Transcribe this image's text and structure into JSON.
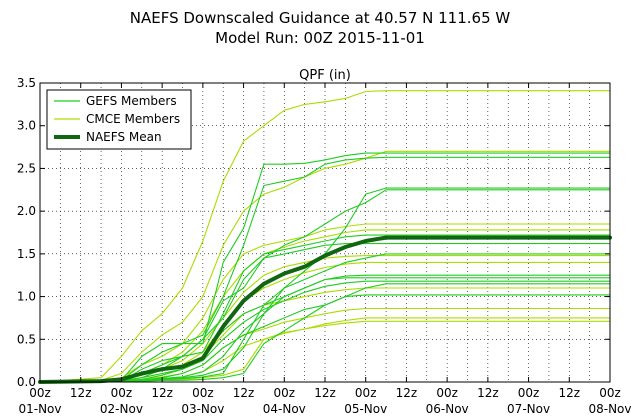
{
  "header": {
    "title_line1": "NAEFS Downscaled Guidance at 40.57 N 111.65 W",
    "title_line2": "Model Run: 00Z 2015-11-01"
  },
  "chart_data": {
    "type": "line",
    "title": "QPF (in)",
    "xlabel": "",
    "ylabel": "",
    "x_unit": "hours since 00z 01-Nov",
    "xlim": [
      0,
      168
    ],
    "ylim": [
      0,
      3.5
    ],
    "yticks": [
      "0.0",
      "0.5",
      "1.0",
      "1.5",
      "2.0",
      "2.5",
      "3.0",
      "3.5"
    ],
    "xticks_top": [
      "00z",
      "12z",
      "00z",
      "12z",
      "00z",
      "12z",
      "00z",
      "12z",
      "00z",
      "12z",
      "00z",
      "12z",
      "00z",
      "12z",
      "00z"
    ],
    "xticks_bottom": [
      "01-Nov",
      "",
      "02-Nov",
      "",
      "03-Nov",
      "",
      "04-Nov",
      "",
      "05-Nov",
      "",
      "06-Nov",
      "",
      "07-Nov",
      "",
      "08-Nov"
    ],
    "grid": "dotted, every 6 hours and every 0.5 in",
    "legend": {
      "placement": "top-left",
      "entries": [
        {
          "label": "GEFS Members",
          "color": "#22cc22"
        },
        {
          "label": "CMCE Members",
          "color": "#aadd00"
        },
        {
          "label": "NAEFS Mean",
          "color": "#116611"
        }
      ]
    },
    "series": [
      {
        "group": "GEFS Members",
        "color": "#22cc22",
        "x": [
          0,
          18,
          24,
          30,
          36,
          42,
          48,
          54,
          60,
          66,
          72,
          78,
          84,
          90,
          96,
          102,
          168
        ],
        "y": [
          0,
          0,
          0.02,
          0.3,
          0.45,
          0.45,
          0.45,
          1.4,
          1.8,
          2.55,
          2.55,
          2.56,
          2.6,
          2.65,
          2.68,
          2.68,
          2.68
        ]
      },
      {
        "group": "GEFS Members",
        "color": "#22cc22",
        "x": [
          0,
          18,
          24,
          30,
          36,
          42,
          48,
          54,
          60,
          66,
          72,
          78,
          84,
          90,
          96,
          102,
          168
        ],
        "y": [
          0,
          0,
          0.02,
          0.2,
          0.35,
          0.45,
          0.55,
          1.0,
          1.6,
          2.3,
          2.35,
          2.4,
          2.55,
          2.6,
          2.62,
          2.63,
          2.63
        ]
      },
      {
        "group": "GEFS Members",
        "color": "#22cc22",
        "x": [
          0,
          18,
          24,
          30,
          36,
          42,
          48,
          54,
          60,
          66,
          72,
          78,
          84,
          90,
          96,
          102,
          168
        ],
        "y": [
          0,
          0,
          0.02,
          0.1,
          0.2,
          0.3,
          0.5,
          0.95,
          1.1,
          1.45,
          1.6,
          1.7,
          1.85,
          2.0,
          2.1,
          2.25,
          2.25
        ]
      },
      {
        "group": "GEFS Members",
        "color": "#22cc22",
        "x": [
          0,
          18,
          24,
          30,
          36,
          42,
          48,
          54,
          60,
          66,
          72,
          78,
          84,
          90,
          96,
          102,
          168
        ],
        "y": [
          0,
          0,
          0.01,
          0.15,
          0.25,
          0.3,
          0.35,
          0.8,
          1.3,
          1.5,
          1.55,
          1.6,
          1.65,
          1.7,
          1.72,
          1.72,
          1.72
        ]
      },
      {
        "group": "GEFS Members",
        "color": "#22cc22",
        "x": [
          0,
          18,
          24,
          30,
          36,
          42,
          48,
          54,
          60,
          66,
          72,
          78,
          84,
          90,
          96,
          102,
          168
        ],
        "y": [
          0,
          0,
          0.01,
          0.05,
          0.15,
          0.3,
          0.5,
          0.75,
          1.2,
          1.45,
          1.5,
          1.55,
          1.6,
          1.62,
          1.62,
          1.62,
          1.62
        ]
      },
      {
        "group": "GEFS Members",
        "color": "#22cc22",
        "x": [
          0,
          18,
          24,
          30,
          36,
          42,
          48,
          54,
          60,
          66,
          72,
          78,
          84,
          90,
          96,
          102,
          168
        ],
        "y": [
          0,
          0,
          0.01,
          0.05,
          0.1,
          0.15,
          0.3,
          0.6,
          0.8,
          0.9,
          1.0,
          1.1,
          1.2,
          1.24,
          1.25,
          1.25,
          1.25
        ]
      },
      {
        "group": "GEFS Members",
        "color": "#22cc22",
        "x": [
          0,
          18,
          24,
          30,
          36,
          42,
          48,
          54,
          60,
          66,
          72,
          78,
          84,
          90,
          96,
          102,
          168
        ],
        "y": [
          0,
          0,
          0.01,
          0.03,
          0.08,
          0.15,
          0.25,
          0.5,
          0.7,
          0.85,
          0.95,
          1.05,
          1.12,
          1.16,
          1.18,
          1.18,
          1.18
        ]
      },
      {
        "group": "GEFS Members",
        "color": "#22cc22",
        "x": [
          0,
          18,
          24,
          30,
          36,
          42,
          48,
          54,
          60,
          66,
          72,
          78,
          84,
          90,
          96,
          102,
          168
        ],
        "y": [
          0,
          0,
          0.01,
          0.02,
          0.05,
          0.1,
          0.2,
          0.4,
          0.55,
          0.65,
          0.75,
          0.85,
          0.9,
          1.0,
          1.02,
          1.02,
          1.02
        ]
      },
      {
        "group": "GEFS Members",
        "color": "#22cc22",
        "x": [
          0,
          18,
          24,
          30,
          36,
          42,
          48,
          54,
          60,
          66,
          72,
          78,
          84,
          90,
          96,
          102,
          168
        ],
        "y": [
          0,
          0,
          0.01,
          0.02,
          0.04,
          0.06,
          0.12,
          0.3,
          0.6,
          0.8,
          1.0,
          1.1,
          1.2,
          1.22,
          1.22,
          1.22,
          1.22
        ]
      },
      {
        "group": "GEFS Members",
        "color": "#22cc22",
        "x": [
          0,
          18,
          24,
          30,
          36,
          42,
          48,
          54,
          60,
          66,
          72,
          78,
          84,
          90,
          96,
          102,
          168
        ],
        "y": [
          0,
          0,
          0.01,
          0.02,
          0.03,
          0.05,
          0.08,
          0.15,
          0.4,
          0.8,
          1.1,
          1.3,
          1.5,
          1.8,
          2.2,
          2.27,
          2.27
        ]
      },
      {
        "group": "GEFS Members",
        "color": "#22cc22",
        "x": [
          0,
          18,
          24,
          30,
          36,
          42,
          48,
          54,
          60,
          66,
          72,
          78,
          84,
          90,
          96,
          102,
          168
        ],
        "y": [
          0,
          0,
          0,
          0.02,
          0.03,
          0.04,
          0.06,
          0.1,
          0.5,
          0.9,
          1.1,
          1.2,
          1.3,
          1.4,
          1.45,
          1.5,
          1.5
        ]
      },
      {
        "group": "GEFS Members",
        "color": "#22cc22",
        "x": [
          0,
          18,
          24,
          30,
          36,
          42,
          48,
          54,
          60,
          66,
          72,
          78,
          84,
          90,
          96,
          102,
          168
        ],
        "y": [
          0,
          0,
          0,
          0.01,
          0.02,
          0.02,
          0.03,
          0.05,
          0.1,
          0.45,
          0.6,
          0.75,
          0.9,
          1.0,
          1.1,
          1.15,
          1.15
        ]
      },
      {
        "group": "CMCE Members",
        "color": "#aadd00",
        "x": [
          0,
          18,
          24,
          30,
          36,
          42,
          48,
          54,
          60,
          66,
          72,
          78,
          84,
          90,
          96,
          102,
          168
        ],
        "y": [
          0,
          0.05,
          0.3,
          0.6,
          0.8,
          1.1,
          1.65,
          2.35,
          2.82,
          3.0,
          3.18,
          3.25,
          3.28,
          3.32,
          3.4,
          3.41,
          3.41
        ]
      },
      {
        "group": "CMCE Members",
        "color": "#aadd00",
        "x": [
          0,
          18,
          24,
          30,
          36,
          42,
          48,
          54,
          60,
          66,
          72,
          78,
          84,
          90,
          96,
          102,
          168
        ],
        "y": [
          0,
          0.02,
          0.1,
          0.35,
          0.55,
          0.7,
          1.0,
          1.6,
          2.0,
          2.2,
          2.28,
          2.4,
          2.5,
          2.55,
          2.62,
          2.7,
          2.7
        ]
      },
      {
        "group": "CMCE Members",
        "color": "#aadd00",
        "x": [
          0,
          18,
          24,
          30,
          36,
          42,
          48,
          54,
          60,
          66,
          72,
          78,
          84,
          90,
          96,
          102,
          168
        ],
        "y": [
          0,
          0.01,
          0.05,
          0.2,
          0.3,
          0.45,
          0.75,
          1.2,
          1.5,
          1.6,
          1.65,
          1.7,
          1.78,
          1.82,
          1.85,
          1.85,
          1.85
        ]
      },
      {
        "group": "CMCE Members",
        "color": "#aadd00",
        "x": [
          0,
          18,
          24,
          30,
          36,
          42,
          48,
          54,
          60,
          66,
          72,
          78,
          84,
          90,
          96,
          102,
          168
        ],
        "y": [
          0,
          0.01,
          0.03,
          0.1,
          0.2,
          0.35,
          0.6,
          1.0,
          1.3,
          1.5,
          1.58,
          1.65,
          1.7,
          1.75,
          1.78,
          1.78,
          1.78
        ]
      },
      {
        "group": "CMCE Members",
        "color": "#aadd00",
        "x": [
          0,
          18,
          24,
          30,
          36,
          42,
          48,
          54,
          60,
          66,
          72,
          78,
          84,
          90,
          96,
          102,
          168
        ],
        "y": [
          0,
          0.01,
          0.03,
          0.1,
          0.15,
          0.25,
          0.45,
          0.75,
          1.05,
          1.25,
          1.35,
          1.4,
          1.45,
          1.47,
          1.48,
          1.48,
          1.48
        ]
      },
      {
        "group": "CMCE Members",
        "color": "#aadd00",
        "x": [
          0,
          18,
          24,
          30,
          36,
          42,
          48,
          54,
          60,
          66,
          72,
          78,
          84,
          90,
          96,
          102,
          168
        ],
        "y": [
          0,
          0.01,
          0.02,
          0.08,
          0.15,
          0.2,
          0.35,
          0.65,
          0.95,
          1.1,
          1.2,
          1.28,
          1.34,
          1.38,
          1.4,
          1.4,
          1.4
        ]
      },
      {
        "group": "CMCE Members",
        "color": "#aadd00",
        "x": [
          0,
          18,
          24,
          30,
          36,
          42,
          48,
          54,
          60,
          66,
          72,
          78,
          84,
          90,
          96,
          102,
          168
        ],
        "y": [
          0,
          0,
          0.02,
          0.05,
          0.1,
          0.15,
          0.3,
          0.55,
          0.8,
          0.9,
          0.95,
          1.0,
          1.05,
          1.08,
          1.1,
          1.1,
          1.1
        ]
      },
      {
        "group": "CMCE Members",
        "color": "#aadd00",
        "x": [
          0,
          18,
          24,
          30,
          36,
          42,
          48,
          54,
          60,
          66,
          72,
          78,
          84,
          90,
          96,
          102,
          168
        ],
        "y": [
          0,
          0,
          0.01,
          0.03,
          0.06,
          0.1,
          0.2,
          0.4,
          0.55,
          0.62,
          0.7,
          0.75,
          0.8,
          0.84,
          0.86,
          0.86,
          0.86
        ]
      },
      {
        "group": "CMCE Members",
        "color": "#aadd00",
        "x": [
          0,
          18,
          24,
          30,
          36,
          42,
          48,
          54,
          60,
          66,
          72,
          78,
          84,
          90,
          96,
          102,
          168
        ],
        "y": [
          0,
          0,
          0.01,
          0.02,
          0.04,
          0.06,
          0.12,
          0.25,
          0.42,
          0.5,
          0.57,
          0.62,
          0.68,
          0.72,
          0.75,
          0.75,
          0.75
        ]
      },
      {
        "group": "CMCE Members",
        "color": "#aadd00",
        "x": [
          0,
          18,
          24,
          30,
          36,
          42,
          48,
          54,
          60,
          66,
          72,
          78,
          84,
          90,
          96,
          102,
          168
        ],
        "y": [
          0,
          0,
          0,
          0.01,
          0.02,
          0.03,
          0.05,
          0.08,
          0.15,
          0.5,
          0.58,
          0.62,
          0.66,
          0.69,
          0.71,
          0.71,
          0.71
        ]
      },
      {
        "group": "NAEFS Mean",
        "color": "#116611",
        "x": [
          0,
          18,
          24,
          30,
          36,
          42,
          48,
          54,
          60,
          66,
          72,
          78,
          84,
          90,
          96,
          102,
          168
        ],
        "y": [
          0,
          0.01,
          0.03,
          0.1,
          0.15,
          0.18,
          0.28,
          0.65,
          0.95,
          1.15,
          1.27,
          1.35,
          1.48,
          1.58,
          1.65,
          1.69,
          1.69
        ]
      }
    ]
  }
}
